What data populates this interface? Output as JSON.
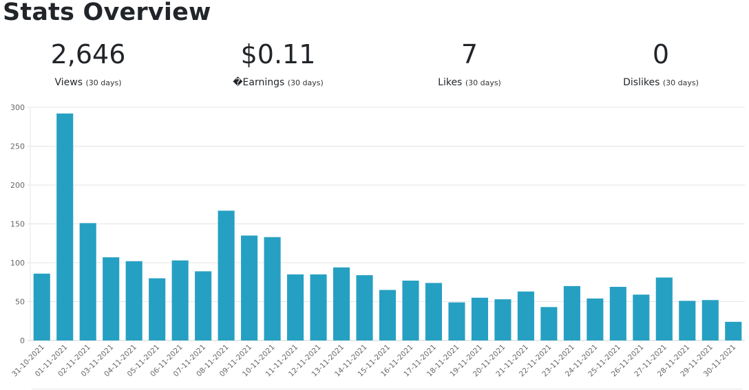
{
  "page": {
    "title": "Stats Overview"
  },
  "stats": [
    {
      "value": "2,646",
      "label": "Views",
      "period": "(30 days)"
    },
    {
      "value": "$0.11",
      "label": "�Earnings",
      "period": "(30 days)"
    },
    {
      "value": "7",
      "label": "Likes",
      "period": "(30 days)"
    },
    {
      "value": "0",
      "label": "Dislikes",
      "period": "(30 days)"
    }
  ],
  "colors": {
    "bar": "#26a0c2",
    "grid": "#e5e5e5",
    "tick_text": "#666666"
  },
  "chart_data": {
    "type": "bar",
    "title": "",
    "xlabel": "",
    "ylabel": "",
    "ylim": [
      0,
      300
    ],
    "yticks": [
      0,
      50,
      100,
      150,
      200,
      250,
      300
    ],
    "grid": true,
    "legend": "none",
    "categories": [
      "31-10-2021",
      "01-11-2021",
      "02-11-2021",
      "03-11-2021",
      "04-11-2021",
      "05-11-2021",
      "06-11-2021",
      "07-11-2021",
      "08-11-2021",
      "09-11-2021",
      "10-11-2021",
      "11-11-2021",
      "12-11-2021",
      "13-11-2021",
      "14-11-2021",
      "15-11-2021",
      "16-11-2021",
      "17-11-2021",
      "18-11-2021",
      "19-11-2021",
      "20-11-2021",
      "21-11-2021",
      "22-11-2021",
      "23-11-2021",
      "24-11-2021",
      "25-11-2021",
      "26-11-2021",
      "27-11-2021",
      "28-11-2021",
      "29-11-2021",
      "30-11-2021"
    ],
    "values": [
      86,
      292,
      151,
      107,
      102,
      80,
      103,
      89,
      167,
      135,
      133,
      85,
      85,
      94,
      84,
      65,
      77,
      74,
      49,
      55,
      53,
      63,
      43,
      70,
      54,
      69,
      59,
      81,
      51,
      52,
      24
    ]
  }
}
